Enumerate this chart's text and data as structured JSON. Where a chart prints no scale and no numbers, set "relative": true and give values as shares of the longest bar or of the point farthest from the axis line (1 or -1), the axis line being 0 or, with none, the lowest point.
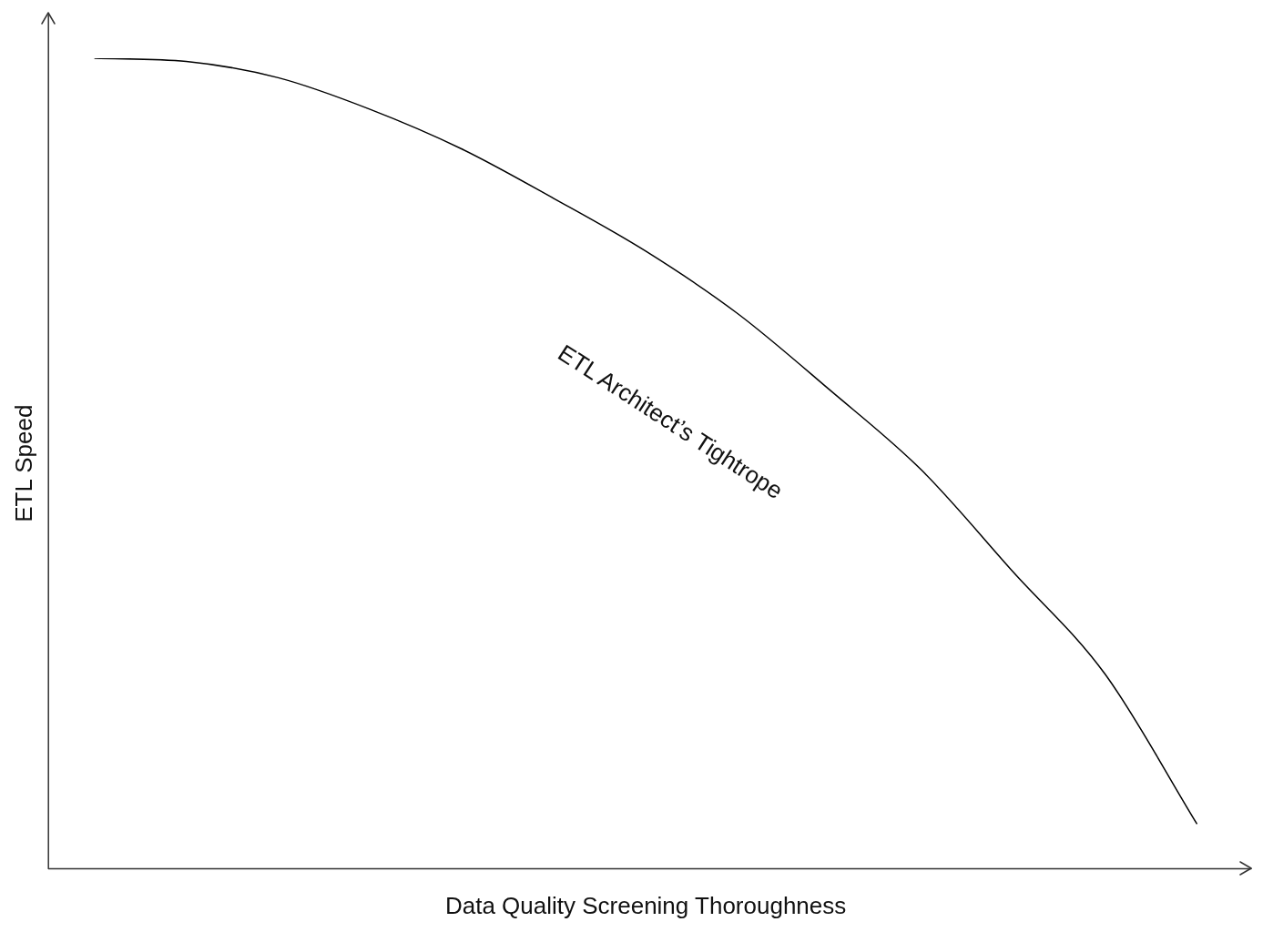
{
  "chart_data": {
    "type": "line",
    "relative": true,
    "xlabel": "Data Quality Screening Thoroughness",
    "ylabel": "ETL Speed",
    "categories": [
      null,
      null,
      null,
      null,
      null,
      null,
      null,
      null,
      null,
      null,
      null,
      null,
      null
    ],
    "series": [
      {
        "color": "#000000",
        "values": [
          1.0,
          0.996,
          0.976,
          0.937,
          0.888,
          0.827,
          0.762,
          0.685,
          0.591,
          0.492,
          0.366,
          0.24,
          0.055
        ]
      }
    ],
    "annotations": [
      "ETL Architect’s Tightrope"
    ],
    "grid": false,
    "legend": false,
    "marker": "none",
    "line_style": "solid"
  }
}
